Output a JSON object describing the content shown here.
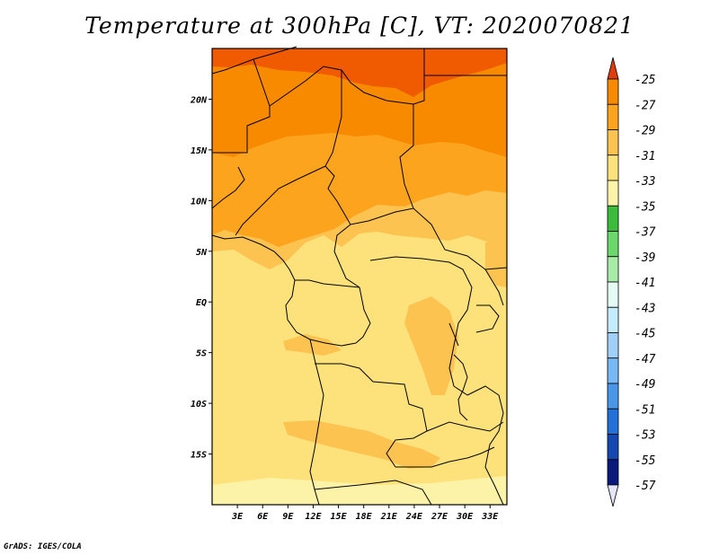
{
  "title": "Temperature at 300hPa [C], VT: 2020070821",
  "credit": "GrADS: IGES/COLA",
  "map": {
    "lat_labels": [
      "20N",
      "15N",
      "10N",
      "5N",
      "EQ",
      "5S",
      "10S",
      "15S"
    ],
    "lat_values": [
      20,
      15,
      10,
      5,
      0,
      -5,
      -10,
      -15
    ],
    "lon_labels": [
      "3E",
      "6E",
      "9E",
      "12E",
      "15E",
      "18E",
      "21E",
      "24E",
      "27E",
      "30E",
      "33E"
    ],
    "lon_values": [
      3,
      6,
      9,
      12,
      15,
      18,
      21,
      24,
      27,
      30,
      33
    ],
    "extent": {
      "lon_min": 0,
      "lon_max": 35,
      "lat_min": -20,
      "lat_max": 25
    }
  },
  "colorbar": {
    "labels": [
      "-25",
      "-27",
      "-29",
      "-31",
      "-33",
      "-35",
      "-37",
      "-39",
      "-41",
      "-43",
      "-45",
      "-47",
      "-49",
      "-51",
      "-53",
      "-55",
      "-57"
    ],
    "colors": [
      "#f05a00",
      "#f88a00",
      "#fca41e",
      "#fcc350",
      "#fde27c",
      "#fdf3a8",
      "#3cbc3c",
      "#6cd86c",
      "#a8eaa8",
      "#e4fcf4",
      "#c4ecfc",
      "#a0d0f8",
      "#78b8f4",
      "#4a96e8",
      "#2270d8",
      "#1448b0",
      "#0a1a7c",
      "#0a0a5a"
    ],
    "top_arrow_color": "#e03c0c",
    "bottom_arrow_color": "#e4e4fc"
  },
  "fill_colors": {
    "c_m25": "#f05a00",
    "c_m27": "#f88a00",
    "c_m29": "#fca41e",
    "c_m31": "#fcc350",
    "c_m33": "#fde27c",
    "c_m35": "#fdf3a8"
  }
}
